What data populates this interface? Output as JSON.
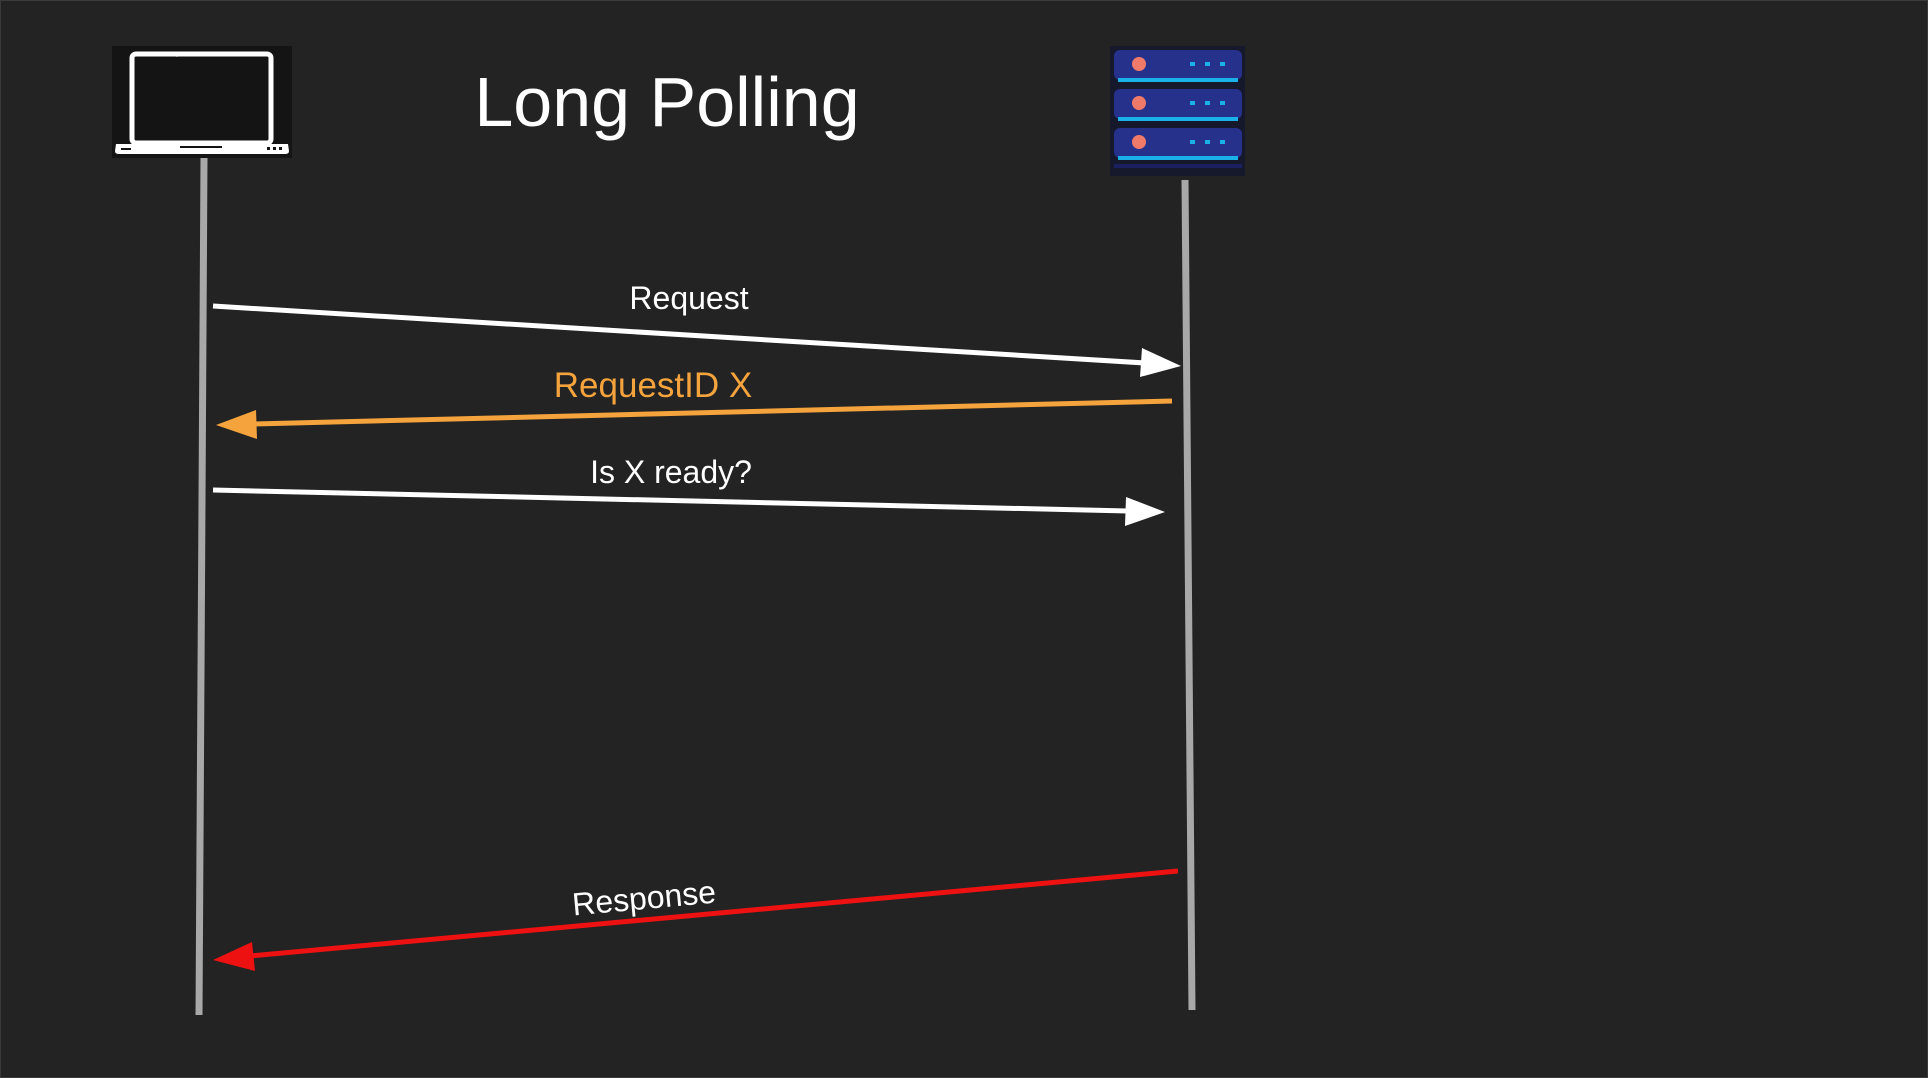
{
  "title": "Long Polling",
  "participants": {
    "client": {
      "icon": "laptop-icon"
    },
    "server": {
      "icon": "server-rack-icon"
    }
  },
  "messages": [
    {
      "label": "Request",
      "direction": "client-to-server",
      "color": "#ffffff"
    },
    {
      "label": "RequestID X",
      "direction": "server-to-client",
      "color": "#f5a33c"
    },
    {
      "label": "Is X ready?",
      "direction": "client-to-server",
      "color": "#ffffff"
    },
    {
      "label": "Response",
      "direction": "server-to-client",
      "color": "#ee1111"
    }
  ],
  "colors": {
    "background": "#232323",
    "lifeline": "#a8a8a8",
    "server_body": "#25318a",
    "server_stripe": "#1ab0e8",
    "server_led": "#f07a6a"
  }
}
